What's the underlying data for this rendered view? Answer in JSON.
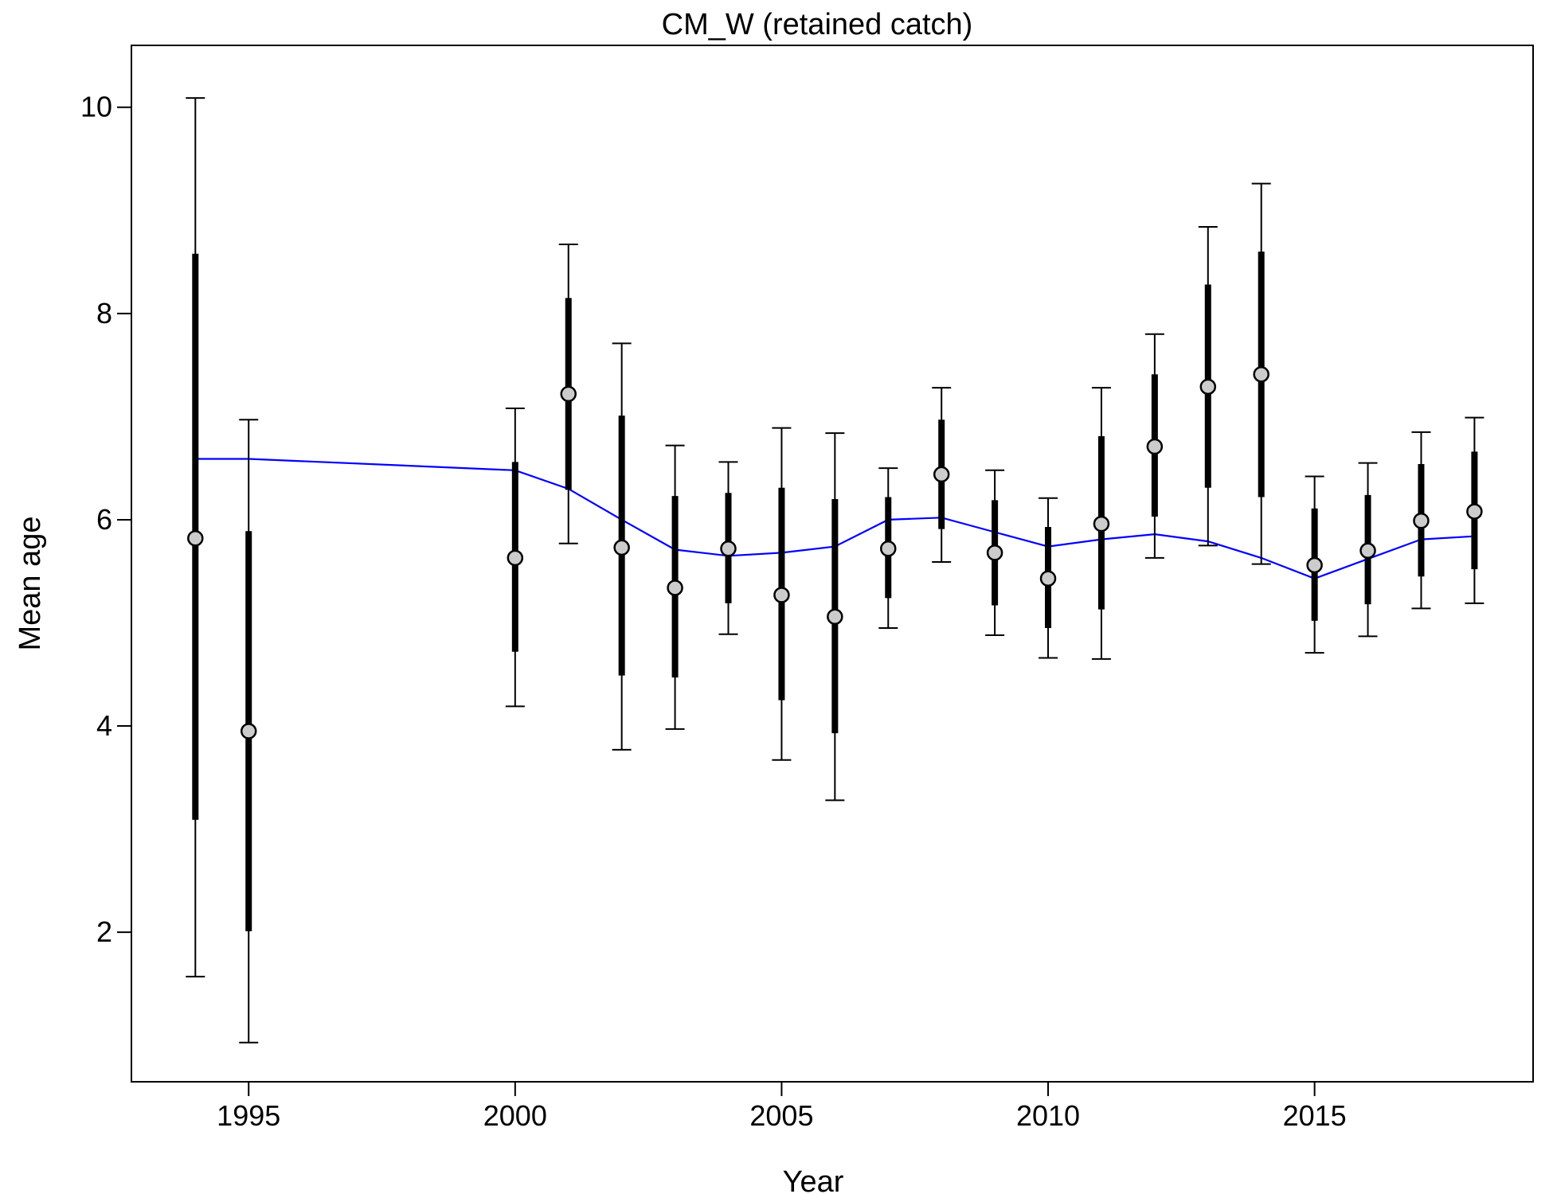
{
  "chart_data": {
    "type": "scatter",
    "title": "CM_W (retained catch)",
    "xlabel": "Year",
    "ylabel": "Mean age",
    "xlim": [
      1992.8,
      2019.1
    ],
    "ylim": [
      0.55,
      10.6
    ],
    "x_ticks": [
      1995,
      2000,
      2005,
      2010,
      2015
    ],
    "y_ticks": [
      2,
      4,
      6,
      8,
      10
    ],
    "grid": false,
    "colors": {
      "observed": "#cccccc",
      "expected_line": "#0000ff",
      "error_bars": "#000000"
    },
    "series": [
      {
        "name": "observed",
        "x": [
          1994,
          1995,
          2000,
          2001,
          2002,
          2003,
          2004,
          2005,
          2006,
          2007,
          2008,
          2009,
          2010,
          2011,
          2012,
          2013,
          2014,
          2015,
          2016,
          2017,
          2018
        ],
        "values": [
          5.82,
          3.95,
          5.63,
          7.22,
          5.73,
          5.34,
          5.72,
          5.27,
          5.06,
          5.72,
          6.44,
          5.68,
          5.43,
          5.96,
          6.71,
          7.29,
          7.41,
          5.56,
          5.7,
          5.99,
          6.08
        ],
        "inner_low": [
          3.09,
          2.01,
          4.72,
          6.29,
          4.49,
          4.47,
          5.19,
          4.25,
          3.93,
          5.24,
          5.91,
          5.17,
          4.95,
          5.13,
          6.03,
          6.31,
          6.22,
          5.02,
          5.18,
          5.45,
          5.52
        ],
        "inner_high": [
          8.58,
          5.89,
          6.56,
          8.15,
          7.01,
          6.23,
          6.26,
          6.31,
          6.2,
          6.22,
          6.97,
          6.19,
          5.93,
          6.81,
          7.41,
          8.28,
          8.6,
          6.11,
          6.24,
          6.54,
          6.66
        ],
        "outer_low": [
          1.57,
          0.93,
          4.19,
          5.77,
          3.77,
          3.97,
          4.89,
          3.67,
          3.28,
          4.95,
          5.59,
          4.88,
          4.66,
          4.65,
          5.63,
          5.75,
          5.57,
          4.71,
          4.87,
          5.14,
          5.19
        ],
        "outer_high": [
          10.09,
          6.97,
          7.08,
          8.67,
          7.71,
          6.72,
          6.56,
          6.89,
          6.84,
          6.5,
          7.28,
          6.48,
          6.21,
          7.28,
          7.8,
          8.84,
          9.26,
          6.42,
          6.55,
          6.85,
          6.99
        ]
      },
      {
        "name": "expected",
        "x": [
          1994,
          1995,
          2000,
          2001,
          2002,
          2003,
          2004,
          2005,
          2006,
          2007,
          2008,
          2009,
          2010,
          2011,
          2012,
          2013,
          2014,
          2015,
          2016,
          2017,
          2018
        ],
        "values": [
          6.59,
          6.59,
          6.48,
          6.3,
          6.0,
          5.71,
          5.65,
          5.68,
          5.74,
          6.0,
          6.02,
          5.88,
          5.74,
          5.81,
          5.86,
          5.79,
          5.63,
          5.43,
          5.62,
          5.81,
          5.84
        ]
      }
    ]
  }
}
